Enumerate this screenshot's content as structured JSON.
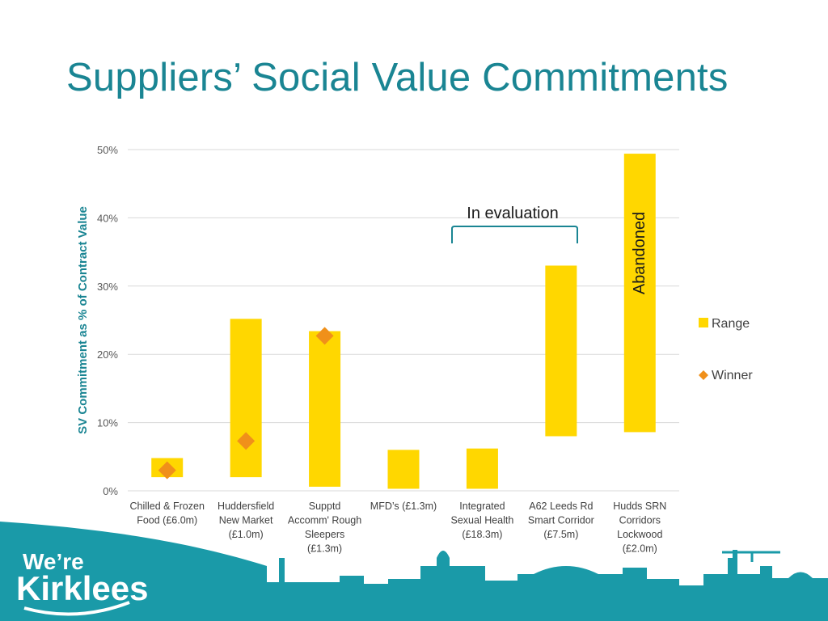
{
  "slide": {
    "title": "Suppliers’ Social Value Commitments"
  },
  "chart_data": {
    "type": "bar",
    "title": "Suppliers’ Social Value Commitments",
    "ylabel": "SV Commitment as % of Contract Value",
    "xlabel": "",
    "ylim": [
      0,
      50
    ],
    "yticks": [
      "0%",
      "10%",
      "20%",
      "30%",
      "40%",
      "50%"
    ],
    "grid": true,
    "legend_position": "right",
    "categories": [
      [
        "Chilled & Frozen",
        "Food (£6.0m)"
      ],
      [
        "Huddersfield",
        "New Market",
        "(£1.0m)"
      ],
      [
        "Supptd",
        "Accomm' Rough",
        "Sleepers",
        "(£1.3m)"
      ],
      [
        "MFD’s (£1.3m)"
      ],
      [
        "Integrated",
        "Sexual Health",
        "(£18.3m)"
      ],
      [
        "A62 Leeds Rd",
        "Smart Corridor",
        "(£7.5m)"
      ],
      [
        "Hudds SRN",
        "Corridors",
        "Lockwood",
        "(£2.0m)"
      ]
    ],
    "series": [
      {
        "name": "Range",
        "kind": "floating-bar",
        "color": "#ffd700",
        "low": [
          2.0,
          2.0,
          0.6,
          0.3,
          0.3,
          8.0,
          8.6
        ],
        "high": [
          4.8,
          25.2,
          23.4,
          6.0,
          6.2,
          33.0,
          49.4
        ]
      },
      {
        "name": "Winner",
        "kind": "marker",
        "color": "#f0901a",
        "values": [
          3.0,
          7.3,
          22.7,
          null,
          null,
          null,
          null
        ]
      }
    ],
    "annotations": {
      "in_evaluation": "In evaluation",
      "abandoned": "Abandoned"
    },
    "legend": [
      "Range",
      "Winner"
    ]
  },
  "brand": {
    "logo_line1": "We’re",
    "logo_line2": "Kirklees",
    "band_color": "#1a9aa8"
  }
}
